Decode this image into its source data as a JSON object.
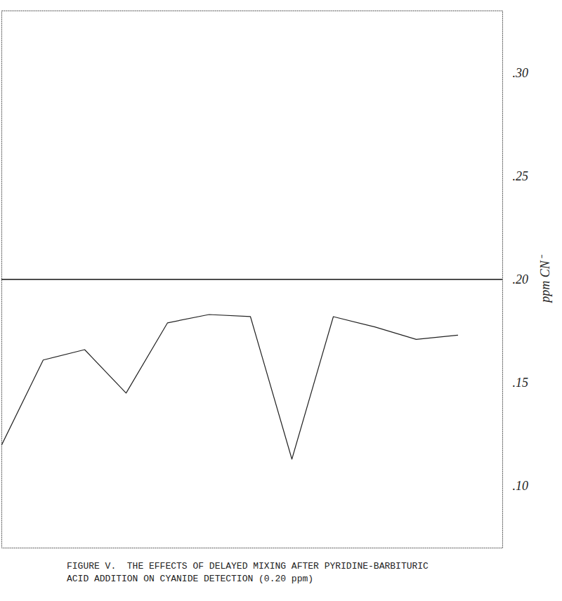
{
  "chart_data": {
    "type": "line",
    "title": "FIGURE V.  THE EFFECTS OF DELAYED MIXING AFTER PYRIDINE-BARBITURIC ACID ADDITION ON CYANIDE DETECTION (0.20 ppm)",
    "y_label": "ppm CN⁻",
    "categories": [
      null,
      null,
      null,
      null,
      null,
      null,
      null,
      null,
      null,
      null,
      null,
      null
    ],
    "values": [
      0.12,
      0.161,
      0.166,
      0.145,
      0.179,
      0.183,
      0.182,
      0.113,
      0.182,
      0.177,
      0.171,
      0.173
    ],
    "reference_value": 0.2,
    "color": "#222222",
    "line_style": "solid",
    "marker": "none",
    "ylim": [
      0.07,
      0.33
    ],
    "yticks": [
      {
        "value": 0.1,
        "label": ".10"
      },
      {
        "value": 0.15,
        "label": ".15"
      },
      {
        "value": 0.2,
        "label": ".20"
      },
      {
        "value": 0.25,
        "label": ".25"
      },
      {
        "value": 0.3,
        "label": ".30"
      }
    ],
    "grid": false,
    "tick_labels": "y"
  }
}
